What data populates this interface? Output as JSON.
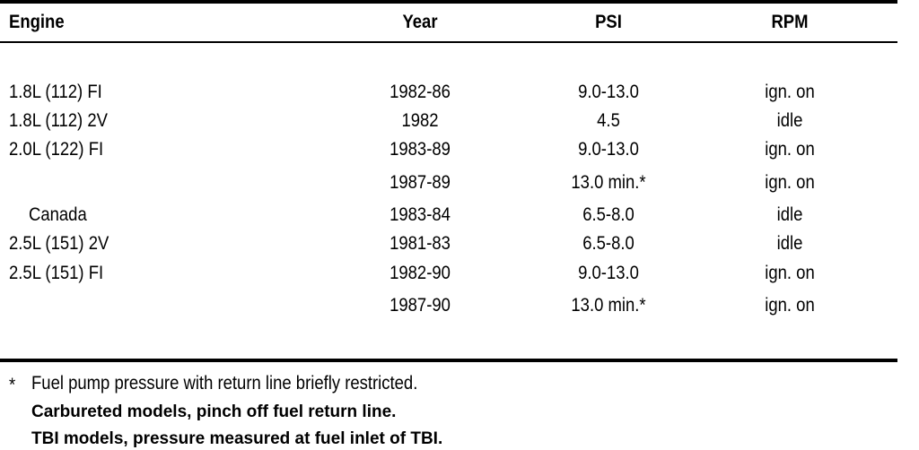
{
  "table": {
    "headers": [
      "Engine",
      "Year",
      "PSI",
      "RPM"
    ],
    "rows": [
      {
        "engine": "1.8L (112) FI",
        "year": "1982-86",
        "psi": "9.0-13.0",
        "rpm": "ign. on"
      },
      {
        "engine": "1.8L (112) 2V",
        "year": "1982",
        "psi": "4.5",
        "rpm": "idle"
      },
      {
        "engine": "2.0L (122) FI",
        "year": "1983-89",
        "psi": "9.0-13.0",
        "rpm": "ign. on"
      },
      {
        "year": "1987-89",
        "psi": "13.0 min.*",
        "rpm": "ign. on"
      },
      {
        "engine": "Canada",
        "year": "1983-84",
        "psi": "6.5-8.0",
        "rpm": "idle"
      },
      {
        "engine": "2.5L (151) 2V",
        "year": "1981-83",
        "psi": "6.5-8.0",
        "rpm": "idle"
      },
      {
        "engine": "2.5L (151) FI",
        "year": "1982-90",
        "psi": "9.0-13.0",
        "rpm": "ign. on"
      },
      {
        "year": "1987-90",
        "psi": "13.0 min.*",
        "rpm": "ign. on"
      }
    ]
  },
  "footnotes": {
    "marker": "*",
    "lines": [
      "Fuel pump pressure with return line briefly restricted.",
      "Carbureted models, pinch off fuel return line.",
      "TBI models, pressure measured at fuel inlet of TBI."
    ]
  }
}
